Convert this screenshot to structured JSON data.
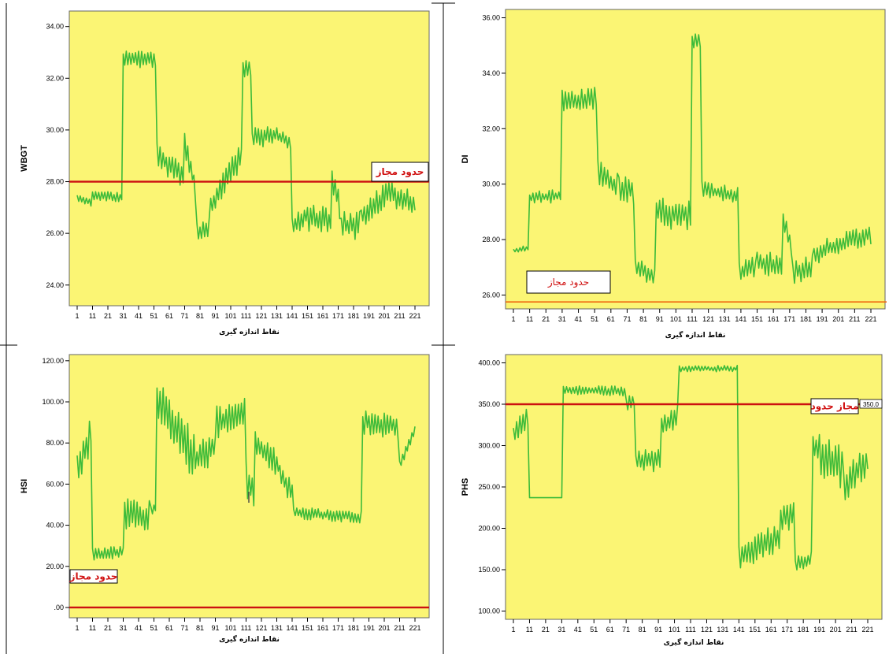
{
  "chart_data": [
    {
      "type": "line",
      "ylabel": "WBGT",
      "xlabel": "نقاط اندازه گیری",
      "x_ticks": [
        "1",
        "11",
        "21",
        "31",
        "41",
        "51",
        "61",
        "71",
        "81",
        "91",
        "101",
        "111",
        "121",
        "131",
        "141",
        "151",
        "161",
        "171",
        "181",
        "191",
        "201",
        "211",
        "221"
      ],
      "y_ticks": [
        "24.00",
        "26.00",
        "28.00",
        "30.00",
        "32.00",
        "34.00"
      ],
      "ylim": [
        23.2,
        34.6
      ],
      "limit": {
        "value": 28.0,
        "label": "حدود مجاز"
      },
      "colors": {
        "line": "#3dbb3a",
        "limit": "#cc1111",
        "background": "#fbf574"
      },
      "series": [
        {
          "segments": [
            [
              1,
              27.4,
              10,
              27.2,
              0.15,
              3
            ],
            [
              11,
              27.5,
              30,
              27.4,
              0.2,
              3
            ],
            [
              31,
              32.8,
              52,
              32.7,
              0.35,
              4
            ],
            [
              53,
              29.0,
              70,
              28.2,
              0.5,
              5
            ],
            [
              71,
              29.4,
              78,
              27.8,
              0.5,
              5
            ],
            [
              79,
              26.0,
              87,
              26.3,
              0.45,
              6
            ],
            [
              88,
              27.0,
              95,
              27.7,
              0.5,
              7
            ],
            [
              96,
              28.0,
              108,
              29.0,
              0.55,
              8
            ],
            [
              109,
              32.4,
              114,
              32.3,
              0.4,
              9
            ],
            [
              115,
              29.7,
              130,
              29.8,
              0.4,
              10
            ],
            [
              131,
              29.8,
              140,
              29.5,
              0.3,
              11
            ],
            [
              141,
              26.2,
              150,
              26.7,
              0.45,
              12
            ],
            [
              151,
              26.6,
              166,
              26.5,
              0.55,
              13
            ],
            [
              167,
              28.1,
              172,
              27.0,
              0.5,
              14
            ],
            [
              173,
              26.3,
              185,
              26.3,
              0.55,
              15
            ],
            [
              186,
              26.7,
              205,
              27.6,
              0.5,
              16
            ],
            [
              206,
              27.5,
              221,
              27.1,
              0.5,
              17
            ]
          ]
        }
      ]
    },
    {
      "type": "line",
      "ylabel": "DI",
      "xlabel": "نقاط اندازه گیری",
      "x_ticks": [
        "1",
        "11",
        "21",
        "31",
        "41",
        "51",
        "61",
        "71",
        "81",
        "91",
        "101",
        "111",
        "121",
        "131",
        "141",
        "151",
        "161",
        "171",
        "181",
        "191",
        "201",
        "211",
        "221"
      ],
      "y_ticks": [
        "26.00",
        "28.00",
        "30.00",
        "32.00",
        "34.00",
        "36.00"
      ],
      "ylim": [
        25.5,
        36.3
      ],
      "limit": {
        "value": 25.75,
        "label": "حدود مجاز"
      },
      "colors": {
        "line": "#3dbb3a",
        "limit": "#f06a10",
        "background": "#fbf574"
      },
      "series": [
        {
          "segments": [
            [
              1,
              27.6,
              10,
              27.7,
              0.1,
              21
            ],
            [
              11,
              29.5,
              30,
              29.6,
              0.25,
              22
            ],
            [
              31,
              33.0,
              52,
              33.1,
              0.4,
              23
            ],
            [
              53,
              30.4,
              65,
              29.9,
              0.5,
              24
            ],
            [
              66,
              29.8,
              75,
              29.8,
              0.6,
              25
            ],
            [
              76,
              27.0,
              88,
              26.7,
              0.4,
              26
            ],
            [
              89,
              29.0,
              110,
              28.9,
              0.6,
              27
            ],
            [
              111,
              35.2,
              116,
              35.1,
              0.3,
              28
            ],
            [
              117,
              29.8,
              139,
              29.6,
              0.3,
              29
            ],
            [
              140,
              26.8,
              150,
              27.0,
              0.4,
              30
            ],
            [
              151,
              27.2,
              166,
              27.0,
              0.45,
              31
            ],
            [
              167,
              28.6,
              172,
              27.8,
              0.5,
              32
            ],
            [
              173,
              26.8,
              185,
              27.0,
              0.45,
              33
            ],
            [
              186,
              27.5,
              221,
              28.2,
              0.4,
              34
            ]
          ]
        }
      ]
    },
    {
      "type": "line",
      "ylabel": "HSI",
      "xlabel": "نقاط اندازه گیری",
      "x_ticks": [
        "1",
        "11",
        "21",
        "31",
        "41",
        "51",
        "61",
        "71",
        "81",
        "91",
        "101",
        "111",
        "121",
        "131",
        "141",
        "151",
        "161",
        "171",
        "181",
        "191",
        "201",
        "211",
        "221"
      ],
      "y_ticks": [
        ".00",
        "20.00",
        "40.00",
        "60.00",
        "80.00",
        "100.00",
        "120.00"
      ],
      "ylim": [
        -5,
        123
      ],
      "limit": {
        "value": 0,
        "label": "حدود مجاز"
      },
      "colors": {
        "line": "#3dbb3a",
        "limit": "#cc1111",
        "background": "#fbf574"
      },
      "series": [
        {
          "segments": [
            [
              1,
              65,
              10,
              85,
              9,
              41
            ],
            [
              11,
              26,
              31,
              27,
              3,
              42
            ],
            [
              32,
              45,
              48,
              44,
              8,
              43
            ],
            [
              49,
              47,
              52,
              49,
              3,
              44
            ],
            [
              53,
              100,
              78,
              72,
              12,
              45
            ],
            [
              79,
              72,
              91,
              78,
              8,
              46
            ],
            [
              92,
              90,
              110,
              95,
              8,
              47
            ],
            [
              111,
              62,
              116,
              58,
              10,
              48
            ],
            [
              117,
              80,
              132,
              70,
              7,
              49
            ],
            [
              133,
              65,
              141,
              55,
              6,
              50
            ],
            [
              142,
              46,
              186,
              44,
              3,
              51
            ],
            [
              187,
              90,
              210,
              88,
              6,
              52
            ],
            [
              211,
              70,
              221,
              86,
              3,
              53
            ]
          ]
        }
      ]
    },
    {
      "type": "line",
      "ylabel": "PHS",
      "xlabel": "نقاط اندازه گیری",
      "x_ticks": [
        "1",
        "11",
        "21",
        "31",
        "41",
        "51",
        "61",
        "71",
        "81",
        "91",
        "101",
        "111",
        "121",
        "131",
        "141",
        "151",
        "161",
        "171",
        "181",
        "191",
        "201",
        "211",
        "221"
      ],
      "y_ticks": [
        "100.00",
        "150.00",
        "200.00",
        "250.00",
        "300.00",
        "350.00",
        "400.00"
      ],
      "ylim": [
        90,
        410
      ],
      "limit": {
        "value": 350,
        "label": "مجاز حدود",
        "value_label": "350.0"
      },
      "colors": {
        "line": "#3dbb3a",
        "limit": "#cc1111",
        "background": "#fbf574"
      },
      "series": [
        {
          "segments": [
            [
              1,
              310,
              10,
              338,
              14,
              61
            ],
            [
              11,
              237,
              31,
              237,
              0,
              62
            ],
            [
              32,
              368,
              70,
              366,
              6,
              63
            ],
            [
              71,
              350,
              76,
              355,
              12,
              64
            ],
            [
              77,
              282,
              92,
              282,
              14,
              65
            ],
            [
              93,
              320,
              103,
              338,
              14,
              66
            ],
            [
              104,
              393,
              140,
              393,
              4,
              67
            ],
            [
              141,
              165,
              166,
              190,
              18,
              68
            ],
            [
              167,
              210,
              175,
              220,
              20,
              69
            ],
            [
              176,
              155,
              186,
              162,
              12,
              70
            ],
            [
              187,
              300,
              205,
              270,
              28,
              71
            ],
            [
              206,
              250,
              221,
              285,
              20,
              72
            ]
          ]
        }
      ]
    }
  ]
}
